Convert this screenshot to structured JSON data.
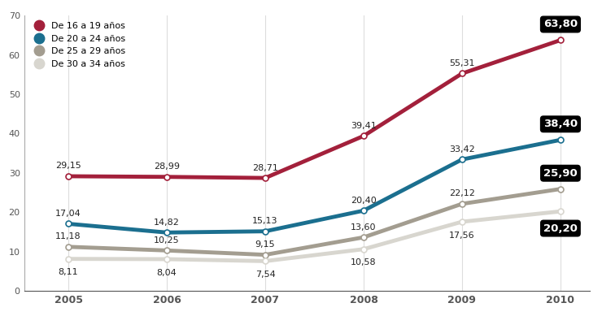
{
  "chart_data": {
    "type": "line",
    "categories": [
      "2005",
      "2006",
      "2007",
      "2008",
      "2009",
      "2010"
    ],
    "series": [
      {
        "name": "De 16 a 19 años",
        "color": "#a3203b",
        "marker": "o",
        "values": [
          29.15,
          28.99,
          28.71,
          39.41,
          55.31,
          63.8
        ],
        "value_labels": [
          "29,15",
          "28,99",
          "28,71",
          "39,41",
          "55,31",
          "63,80"
        ]
      },
      {
        "name": "De 20 a 24 años",
        "color": "#1b6f8f",
        "marker": "o",
        "values": [
          17.04,
          14.82,
          15.13,
          20.4,
          33.42,
          38.4
        ],
        "value_labels": [
          "17,04",
          "14,82",
          "15,13",
          "20,40",
          "33,42",
          "38,40"
        ]
      },
      {
        "name": "De 25 a 29 años",
        "color": "#a39d90",
        "marker": "o",
        "values": [
          11.18,
          10.25,
          9.15,
          13.6,
          22.12,
          25.9
        ],
        "value_labels": [
          "11,18",
          "10,25",
          "9,15",
          "13,60",
          "22,12",
          "25,90"
        ]
      },
      {
        "name": "De 30 a 34 años",
        "color": "#d8d6cf",
        "marker": "o",
        "values": [
          8.11,
          8.04,
          7.54,
          10.58,
          17.56,
          20.2
        ],
        "value_labels": [
          "8,11",
          "8,04",
          "7,54",
          "10,58",
          "17,56",
          "20,20"
        ]
      }
    ],
    "ylim": [
      0,
      70
    ],
    "yticks": [
      0,
      10,
      20,
      30,
      40,
      50,
      60,
      70
    ],
    "grid": true,
    "legend": "upper left",
    "data_labels": true
  }
}
